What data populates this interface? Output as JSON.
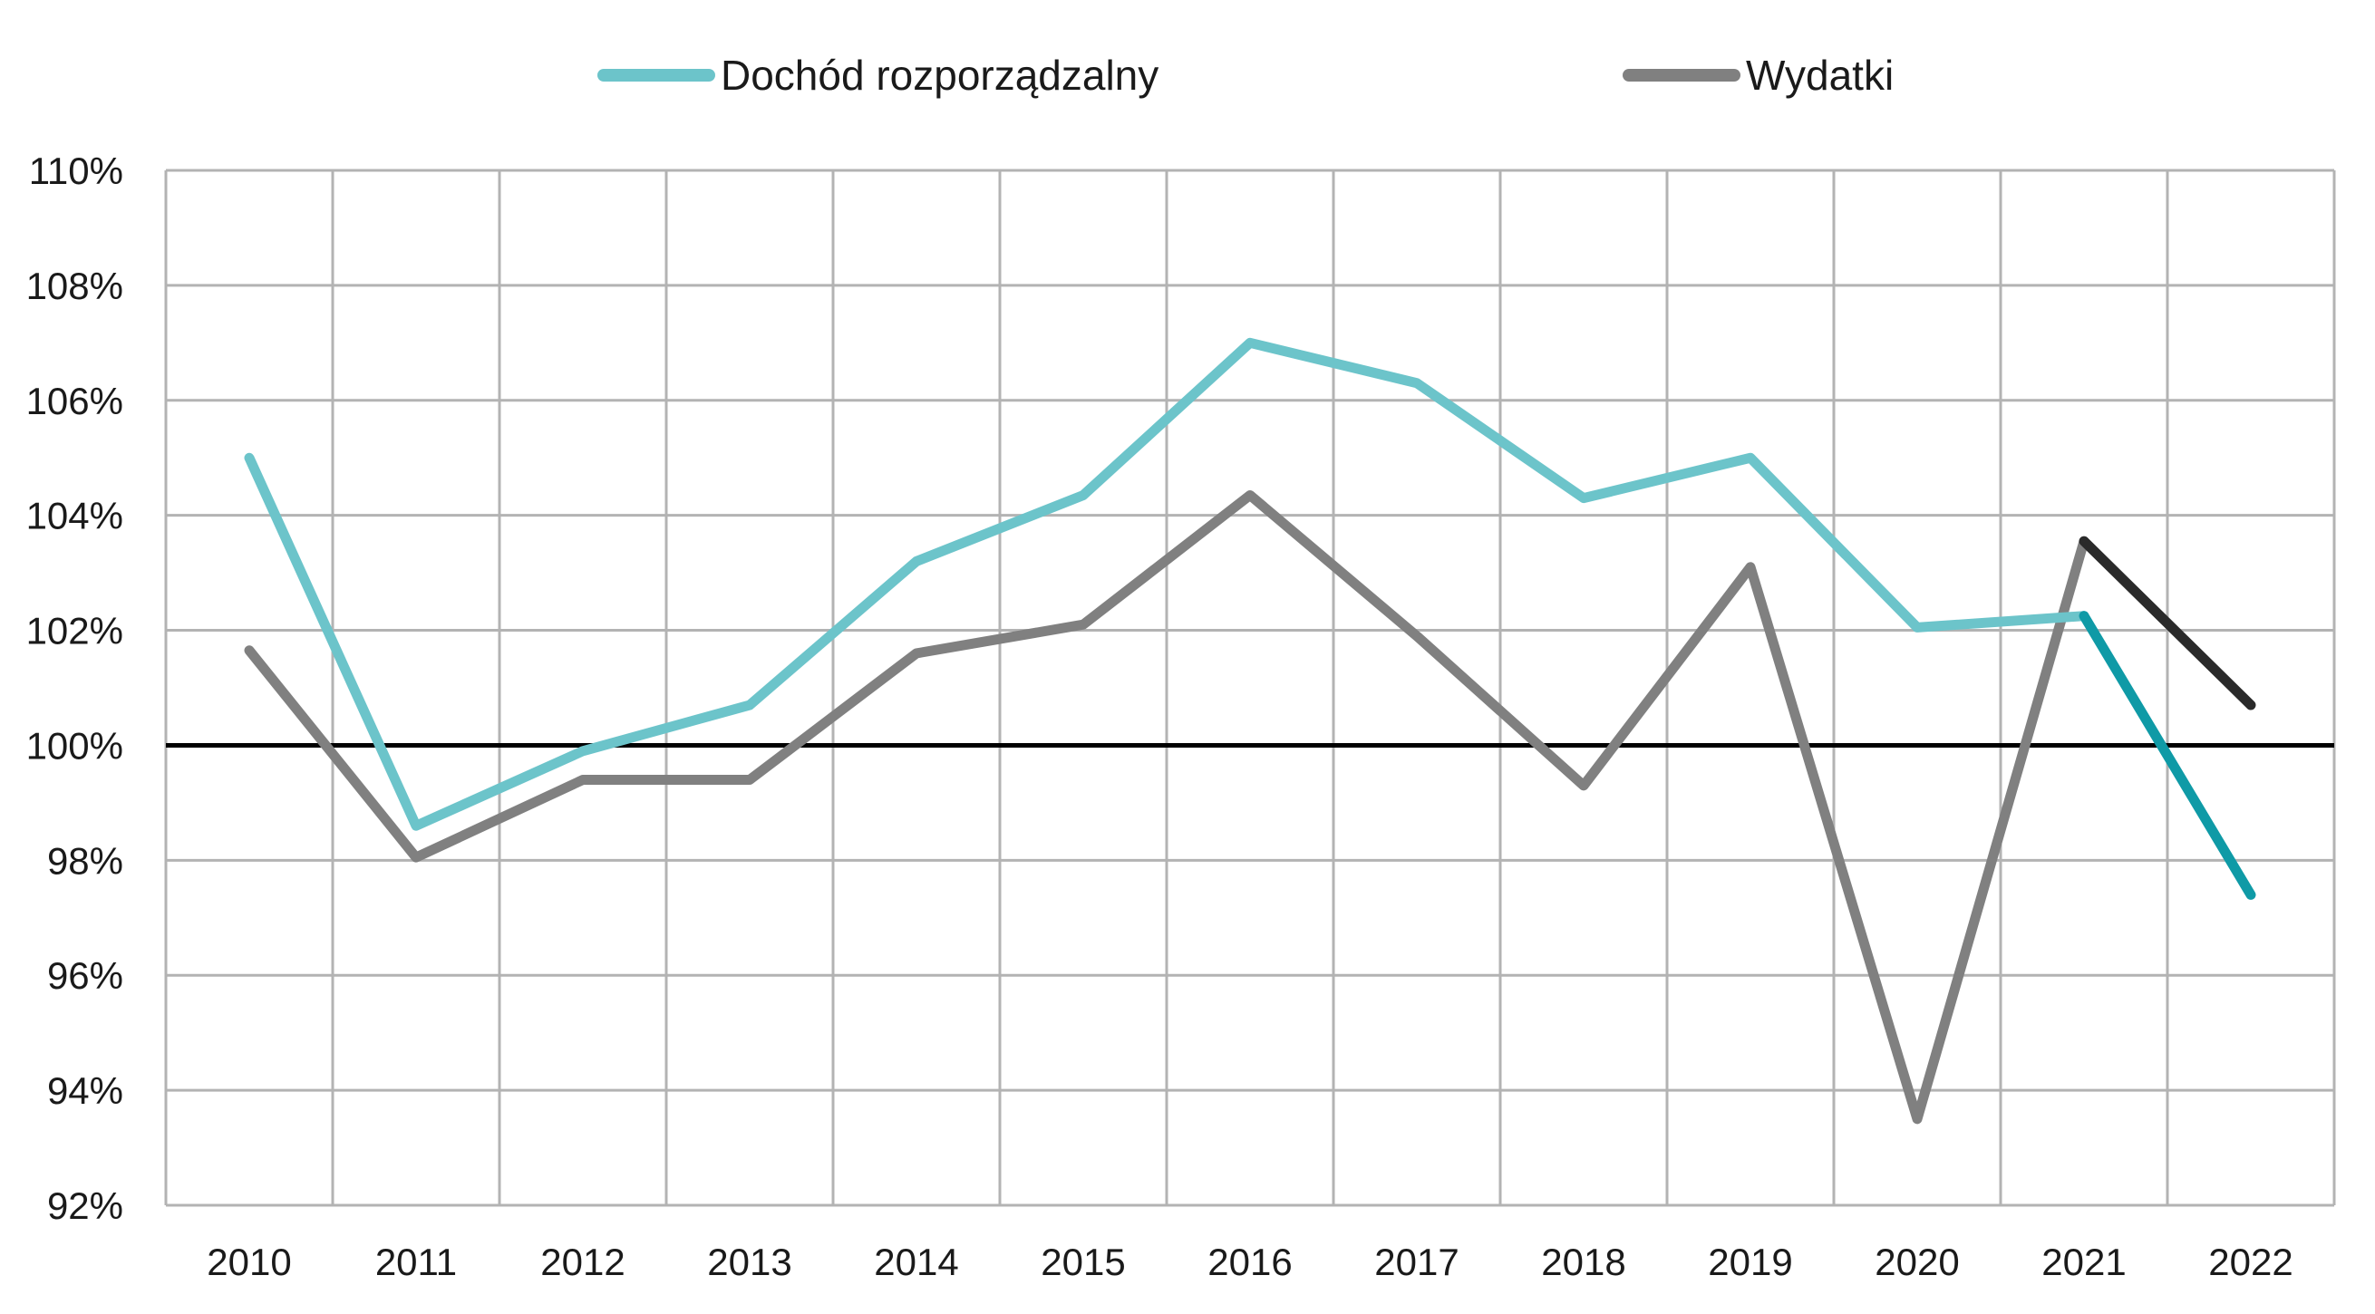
{
  "chart_data": {
    "type": "line",
    "categories": [
      "2010",
      "2011",
      "2012",
      "2013",
      "2014",
      "2015",
      "2016",
      "2017",
      "2018",
      "2019",
      "2020",
      "2021",
      "2022"
    ],
    "series": [
      {
        "name": "Dochód rozporządzalny",
        "color": "#6cc4ca",
        "values": [
          105.0,
          98.6,
          99.9,
          100.7,
          103.2,
          104.35,
          107.0,
          106.3,
          104.3,
          105.0,
          102.05,
          102.25,
          97.4
        ],
        "highlight_last_segment_color": "#0f9aa6"
      },
      {
        "name": "Wydatki",
        "color": "#808080",
        "values": [
          101.65,
          98.05,
          99.4,
          99.4,
          101.6,
          102.1,
          104.35,
          101.9,
          99.3,
          103.1,
          93.5,
          103.55,
          100.7
        ],
        "highlight_last_segment_color": "#2a2a2a"
      }
    ],
    "ylim": [
      92,
      110
    ],
    "yticks": [
      "92%",
      "94%",
      "96%",
      "98%",
      "100%",
      "102%",
      "104%",
      "106%",
      "108%",
      "110%"
    ],
    "reference_line": 100,
    "grid": true,
    "legend": "top-center",
    "title": "",
    "xlabel": "",
    "ylabel": ""
  }
}
